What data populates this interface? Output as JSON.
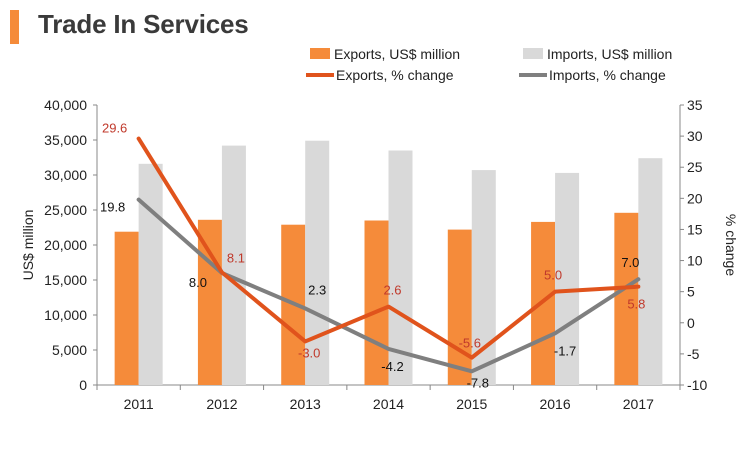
{
  "title": "Trade In Services",
  "colors": {
    "exports_bar": "#f58b3a",
    "imports_bar": "#d9d9d9",
    "exports_line": "#e0531c",
    "imports_line": "#7f7f7f",
    "exports_label": "#c0392b",
    "imports_label": "#111111",
    "accent": "#f58b3a"
  },
  "chart_data": {
    "type": "bar",
    "categories": [
      "2011",
      "2012",
      "2013",
      "2014",
      "2015",
      "2016",
      "2017"
    ],
    "series": [
      {
        "name": "Exports, US$ million",
        "kind": "bar",
        "axis": "left",
        "values": [
          21900,
          23600,
          22900,
          23500,
          22200,
          23300,
          24600
        ]
      },
      {
        "name": "Imports, US$ million",
        "kind": "bar",
        "axis": "left",
        "values": [
          31600,
          34200,
          34900,
          33500,
          30700,
          30300,
          32400
        ]
      },
      {
        "name": "Exports, % change",
        "kind": "line",
        "axis": "right",
        "values": [
          29.6,
          8.1,
          -3.0,
          2.6,
          -5.6,
          5.0,
          5.8
        ]
      },
      {
        "name": "Imports, % change",
        "kind": "line",
        "axis": "right",
        "values": [
          19.8,
          8.0,
          2.3,
          -4.2,
          -7.8,
          -1.7,
          7.0
        ]
      }
    ],
    "ylabel": "US$ million",
    "ylim": [
      0,
      40000
    ],
    "yticks": [
      "0",
      "5,000",
      "10,000",
      "15,000",
      "20,000",
      "25,000",
      "30,000",
      "35,000",
      "40,000"
    ],
    "y2label": "% change",
    "y2lim": [
      -10,
      35
    ],
    "y2ticks": [
      "-10",
      "-5",
      "0",
      "5",
      "10",
      "15",
      "20",
      "25",
      "30",
      "35"
    ],
    "legend": "top-right",
    "grid": false,
    "data_labels": {
      "exports_pct": [
        "29.6",
        "8.1",
        "-3.0",
        "2.6",
        "-5.6",
        "5.0",
        "5.8"
      ],
      "imports_pct": [
        "19.8",
        "8.0",
        "2.3",
        "-4.2",
        "-7.8",
        "-1.7",
        "7.0"
      ]
    }
  }
}
